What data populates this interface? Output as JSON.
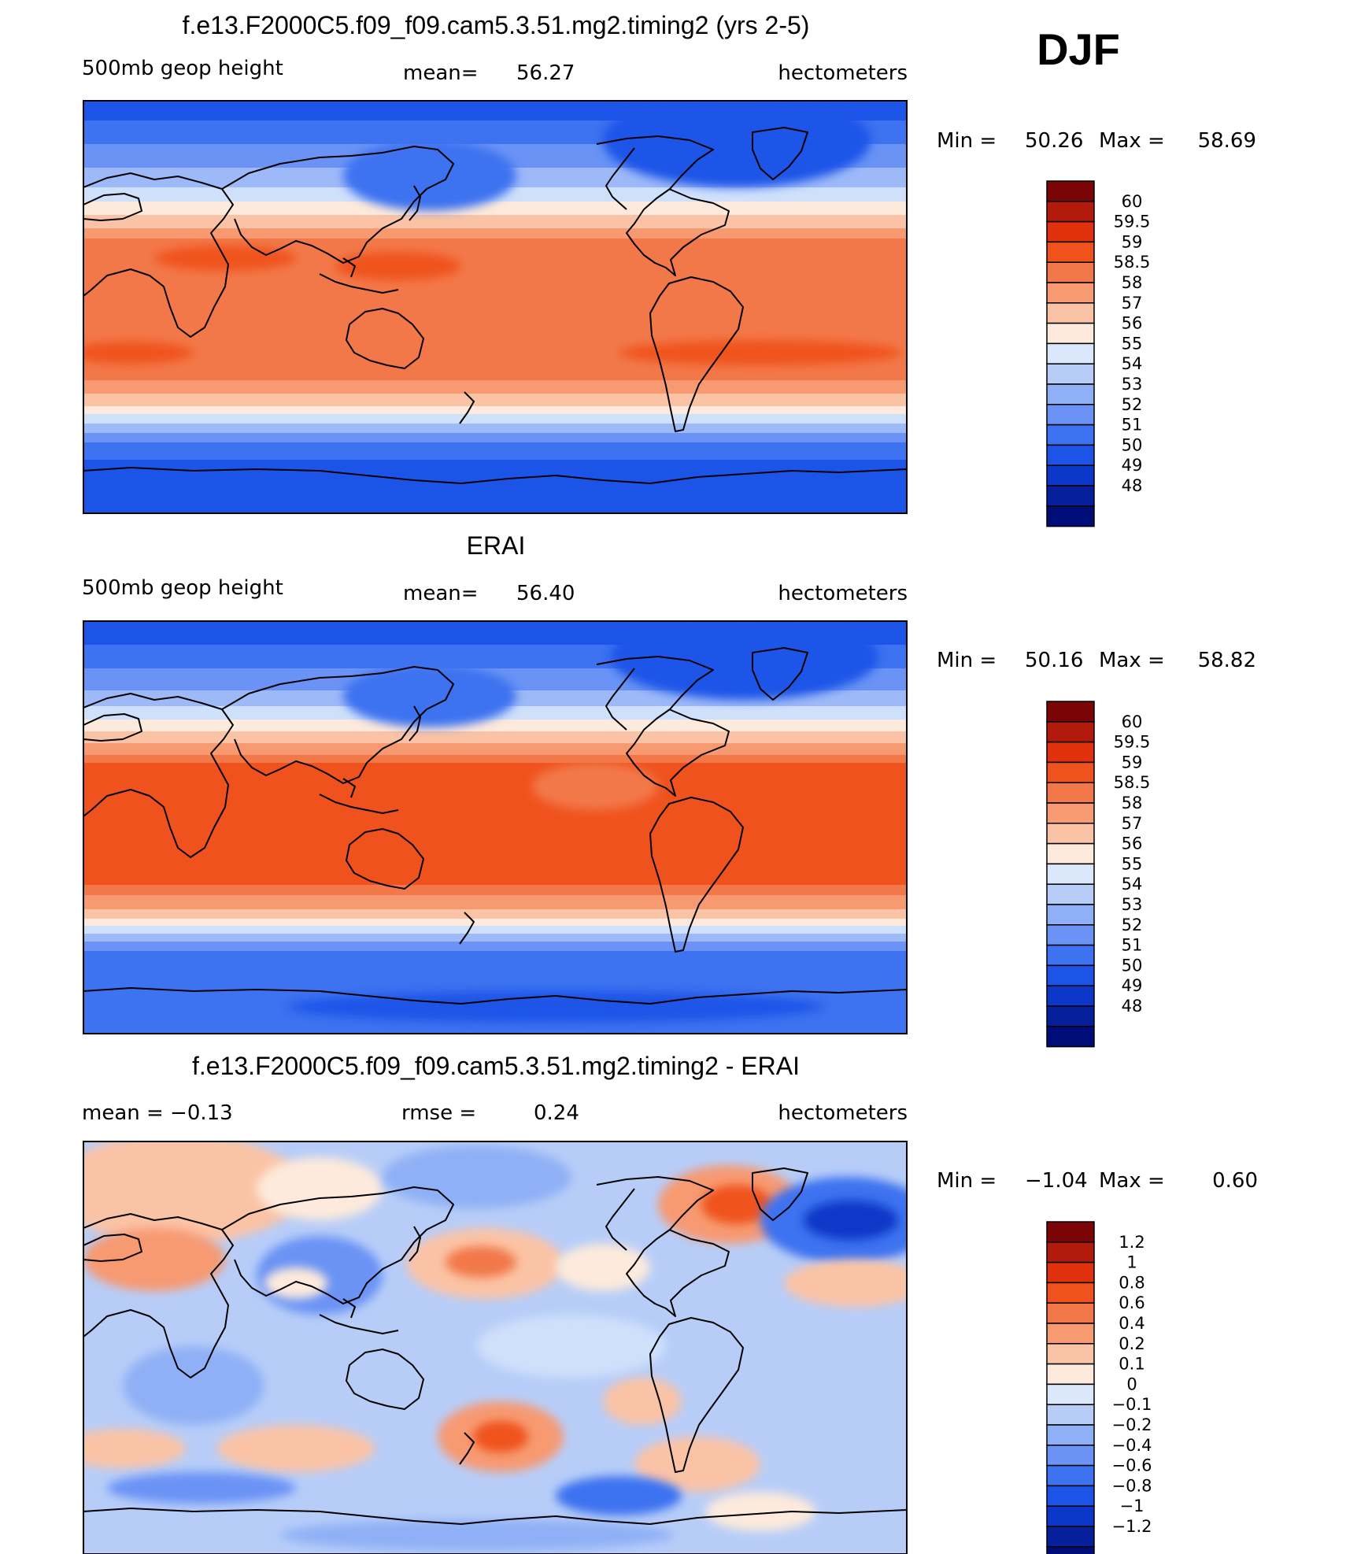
{
  "season": "DJF",
  "panels": [
    {
      "title": "f.e13.F2000C5.f09_f09.cam5.3.51.mg2.timing2 (yrs 2-5)",
      "left": "500mb  geop  height",
      "stat1_label": "mean=",
      "stat1_value": "56.27",
      "units": "hectometers",
      "min_label": "Min  =",
      "min_value": "50.26",
      "max_label": "Max  =",
      "max_value": "58.69",
      "bands": [
        {
          "color": "#1d54e8",
          "tint": 1
        },
        {
          "color": "#3d72f0",
          "tint": 1
        },
        {
          "color": "#6a93f5",
          "tint": 1
        },
        {
          "color": "#9db9f8",
          "tint": 1
        },
        {
          "color": "#cfe0fb",
          "tint": 1
        },
        {
          "color": "#fdeadc",
          "tint": 1
        },
        {
          "color": "#fbc3a5",
          "tint": 1
        },
        {
          "color": "#f79a72",
          "tint": 1
        },
        {
          "color": "#f2784a",
          "tint": 1
        },
        {
          "color": "#f2784a",
          "tint": 1
        },
        {
          "color": "#f79a72",
          "tint": 1
        },
        {
          "color": "#fbc3a5",
          "tint": 1
        },
        {
          "color": "#fdeadc",
          "tint": 1
        },
        {
          "color": "#cfe0fb",
          "tint": 1
        },
        {
          "color": "#6a93f5",
          "tint": 1
        },
        {
          "color": "#3d72f0",
          "tint": 1
        },
        {
          "color": "#1d54e8",
          "tint": 1
        }
      ]
    },
    {
      "title": "ERAI",
      "left": "500mb  geop  height",
      "stat1_label": "mean=",
      "stat1_value": "56.40",
      "units": "hectometers",
      "min_label": "Min  =",
      "min_value": "50.16",
      "max_label": "Max  =",
      "max_value": "58.82"
    },
    {
      "title": "f.e13.F2000C5.f09_f09.cam5.3.51.mg2.timing2 - ERAI",
      "left": "mean  =    −0.13",
      "stat1_label": "rmse  =",
      "stat1_value": "0.24",
      "units": "hectometers",
      "min_label": "Min  =",
      "min_value": "−1.04",
      "max_label": "Max  =",
      "max_value": "0.60"
    }
  ],
  "colorbar_abs": {
    "colors": [
      "#7b0406",
      "#b21a0b",
      "#e0300c",
      "#f0521d",
      "#f2784a",
      "#f79a72",
      "#fbc3a5",
      "#fdeadc",
      "#dbe8fb",
      "#b7cdf8",
      "#8fb0f6",
      "#6a93f5",
      "#3d72f0",
      "#1d54e8",
      "#0b38c8",
      "#05209a",
      "#000c78"
    ],
    "labels": [
      "60",
      "59.5",
      "59",
      "58.5",
      "58",
      "57",
      "56",
      "55",
      "54",
      "53",
      "52",
      "51",
      "50",
      "49",
      "48"
    ]
  },
  "colorbar_diff": {
    "colors": [
      "#7b0406",
      "#b21a0b",
      "#e0300c",
      "#f0521d",
      "#f2784a",
      "#f79a72",
      "#fbc3a5",
      "#fdeadc",
      "#dbe8fb",
      "#b7cdf8",
      "#8fb0f6",
      "#6a93f5",
      "#3d72f0",
      "#1d54e8",
      "#0b38c8",
      "#05209a",
      "#000c78"
    ],
    "labels": [
      "1.2",
      "1",
      "0.8",
      "0.6",
      "0.4",
      "0.2",
      "0.1",
      "0",
      "−0.1",
      "−0.2",
      "−0.4",
      "−0.6",
      "−0.8",
      "−1",
      "−1.2"
    ]
  }
}
